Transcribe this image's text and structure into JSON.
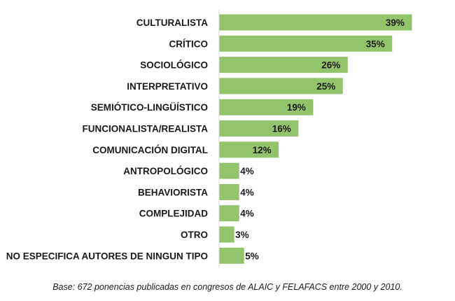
{
  "chart_data": {
    "type": "bar",
    "orientation": "horizontal",
    "categories": [
      "CULTURALISTA",
      "CRÍTICO",
      "SOCIOLÓGICO",
      "INTERPRETATIVO",
      "SEMIÓTICO-LINGÜÍSTICO",
      "FUNCIONALISTA/REALISTA",
      "COMUNICACIÓN DIGITAL",
      "ANTROPOLÓGICO",
      "BEHAVIORISTA",
      "COMPLEJIDAD",
      "OTRO",
      "NO ESPECIFICA AUTORES DE NINGUN TIPO"
    ],
    "values": [
      39,
      35,
      26,
      25,
      19,
      16,
      12,
      4,
      4,
      4,
      3,
      5
    ],
    "value_labels": [
      "39%",
      "35%",
      "26%",
      "25%",
      "19%",
      "16%",
      "12%",
      "4%",
      "4%",
      "4%",
      "3%",
      "5%"
    ],
    "unit": "%",
    "xlim": [
      0,
      40
    ],
    "grid": false,
    "legend": "none",
    "bar_color": "#92c46c",
    "axis_color": "#d9d9d9"
  },
  "caption": "Base: 672 ponencias publicadas en congresos de ALAIC y FELAFACS entre 2000 y 2010."
}
